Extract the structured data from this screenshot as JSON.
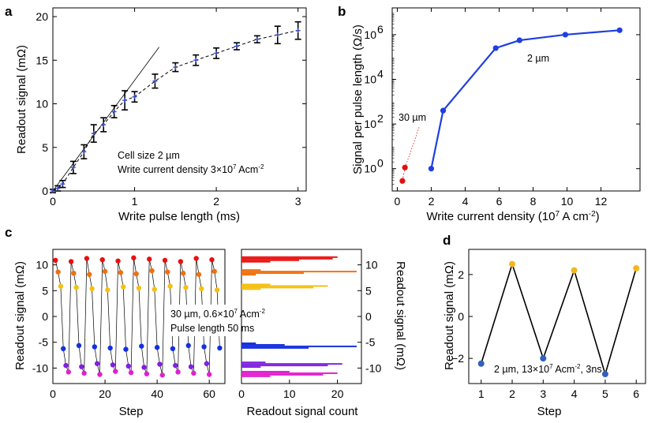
{
  "chart_data": [
    {
      "panel": "a",
      "type": "scatter",
      "xlabel": "Write pulse length (ms)",
      "ylabel": "Readout signal (mΩ)",
      "xlim": [
        0,
        3.1
      ],
      "ylim": [
        0,
        21
      ],
      "xticks": [
        "0",
        "1",
        "2",
        "3"
      ],
      "yticks": [
        "0",
        "5",
        "10",
        "15",
        "20"
      ],
      "points": [
        {
          "x": 0.0,
          "y": 0.0,
          "err": 0.2
        },
        {
          "x": 0.06,
          "y": 0.3,
          "err": 0.3
        },
        {
          "x": 0.12,
          "y": 0.8,
          "err": 0.4
        },
        {
          "x": 0.25,
          "y": 2.7,
          "err": 0.7
        },
        {
          "x": 0.38,
          "y": 4.5,
          "err": 0.8
        },
        {
          "x": 0.5,
          "y": 6.6,
          "err": 1.0
        },
        {
          "x": 0.62,
          "y": 7.6,
          "err": 0.8
        },
        {
          "x": 0.75,
          "y": 9.1,
          "err": 0.7
        },
        {
          "x": 0.88,
          "y": 10.4,
          "err": 1.1
        },
        {
          "x": 1.0,
          "y": 10.8,
          "err": 0.6
        },
        {
          "x": 1.25,
          "y": 12.6,
          "err": 0.8
        },
        {
          "x": 1.5,
          "y": 14.2,
          "err": 0.5
        },
        {
          "x": 1.75,
          "y": 15.0,
          "err": 0.6
        },
        {
          "x": 2.0,
          "y": 15.8,
          "err": 0.6
        },
        {
          "x": 2.25,
          "y": 16.6,
          "err": 0.4
        },
        {
          "x": 2.5,
          "y": 17.4,
          "err": 0.4
        },
        {
          "x": 2.75,
          "y": 17.9,
          "err": 1.0
        },
        {
          "x": 3.0,
          "y": 18.4,
          "err": 1.0
        }
      ],
      "fit_line": {
        "x": [
          0,
          1.3
        ],
        "y": [
          0,
          16.5
        ]
      },
      "annotation": [
        "Cell size 2 µm",
        "Write current density 3×10",
        "7",
        " Acm",
        "-2"
      ],
      "colors": {
        "errorbar": "#000000",
        "marker": "#3a4fd0",
        "fit": "#000000"
      }
    },
    {
      "panel": "b",
      "type": "line",
      "xlabel": "Write current density (10",
      "xlabel_sup": "7",
      "xlabel_end": " A cm",
      "xlabel_sup2": "-2",
      "xlabel_close": ")",
      "ylabel": "Signal per pulse length (Ω/s)",
      "xlim": [
        -0.3,
        14.3
      ],
      "ylog_range": [
        -1,
        7.2
      ],
      "xticks": [
        "0",
        "2",
        "4",
        "6",
        "8",
        "10",
        "12"
      ],
      "yticks_exp": [
        "0",
        "2",
        "4",
        "6"
      ],
      "series": [
        {
          "name": "2 µm",
          "color": "#1f3fe0",
          "x": [
            2.0,
            2.7,
            5.8,
            7.2,
            9.9,
            13.1
          ],
          "log10y": [
            0.0,
            2.6,
            5.4,
            5.75,
            6.0,
            6.2
          ]
        },
        {
          "name": "30 µm",
          "color": "#e01010",
          "x": [
            0.3,
            0.45
          ],
          "log10y": [
            -0.55,
            0.05
          ]
        }
      ],
      "labels": [
        "2 µm",
        "30 µm"
      ]
    },
    {
      "panel": "c",
      "type": "scatter",
      "xlabel": "Step",
      "ylabel": "Readout signal (mΩ)",
      "xlim": [
        0,
        66
      ],
      "ylim": [
        -13,
        13
      ],
      "xticks": [
        "0",
        "20",
        "40",
        "60"
      ],
      "yticks": [
        "10",
        "5",
        "0",
        "-5",
        "-10"
      ],
      "levels": [
        {
          "value": 11.0,
          "color": "#e81010"
        },
        {
          "value": 8.5,
          "color": "#f07010"
        },
        {
          "value": 5.5,
          "color": "#f5c010"
        },
        {
          "value": -6.0,
          "color": "#1530e0"
        },
        {
          "value": -9.5,
          "color": "#8020e0"
        },
        {
          "value": -11.0,
          "color": "#e020d0"
        }
      ],
      "annotation": [
        "30 µm, 0.6×10",
        "7",
        " Acm",
        "-2",
        "Pulse length 50 ms"
      ]
    },
    {
      "panel": "c-histogram",
      "type": "bar",
      "xlabel": "Readout signal count",
      "ylabel": "Readout signal (mΩ)",
      "xlim": [
        0,
        25
      ],
      "xticks": [
        "0",
        "10",
        "20"
      ],
      "yticks": [
        "10",
        "5",
        "0",
        "-5",
        "-10"
      ],
      "bars": [
        {
          "y": 11.5,
          "count": 20,
          "color": "#e81010"
        },
        {
          "y": 11.2,
          "count": 19,
          "color": "#e81010"
        },
        {
          "y": 10.9,
          "count": 12,
          "color": "#e81010"
        },
        {
          "y": 10.6,
          "count": 6,
          "color": "#e81010"
        },
        {
          "y": 9.0,
          "count": 4,
          "color": "#f07010"
        },
        {
          "y": 8.7,
          "count": 24,
          "color": "#f07010"
        },
        {
          "y": 8.4,
          "count": 13,
          "color": "#f07010"
        },
        {
          "y": 8.1,
          "count": 3,
          "color": "#f07010"
        },
        {
          "y": 6.2,
          "count": 6,
          "color": "#f5c010"
        },
        {
          "y": 5.9,
          "count": 18,
          "color": "#f5c010"
        },
        {
          "y": 5.6,
          "count": 15,
          "color": "#f5c010"
        },
        {
          "y": 5.3,
          "count": 4,
          "color": "#f5c010"
        },
        {
          "y": -5.2,
          "count": 3,
          "color": "#1530e0"
        },
        {
          "y": -5.5,
          "count": 9,
          "color": "#1530e0"
        },
        {
          "y": -5.8,
          "count": 24,
          "color": "#1530e0"
        },
        {
          "y": -6.1,
          "count": 14,
          "color": "#1530e0"
        },
        {
          "y": -8.9,
          "count": 5,
          "color": "#8020e0"
        },
        {
          "y": -9.2,
          "count": 21,
          "color": "#8020e0"
        },
        {
          "y": -9.5,
          "count": 18,
          "color": "#8020e0"
        },
        {
          "y": -9.8,
          "count": 4,
          "color": "#8020e0"
        },
        {
          "y": -10.7,
          "count": 10,
          "color": "#e020d0"
        },
        {
          "y": -11.0,
          "count": 20,
          "color": "#e020d0"
        },
        {
          "y": -11.3,
          "count": 17,
          "color": "#e020d0"
        },
        {
          "y": -11.6,
          "count": 6,
          "color": "#e020d0"
        }
      ]
    },
    {
      "panel": "d",
      "type": "line",
      "xlabel": "Step",
      "ylabel": "Readout signal (mΩ)",
      "xlim": [
        0.6,
        6.3
      ],
      "ylim": [
        -3.2,
        3.2
      ],
      "xticks": [
        "1",
        "2",
        "3",
        "4",
        "5",
        "6"
      ],
      "yticks": [
        "2",
        "0",
        "−2"
      ],
      "x": [
        1,
        2,
        3,
        4,
        5,
        6
      ],
      "y": [
        -2.25,
        2.5,
        -2.0,
        2.2,
        -2.75,
        2.3
      ],
      "point_colors": [
        "#3060c0",
        "#f0b820",
        "#3060c0",
        "#f0b820",
        "#3060c0",
        "#f0b820"
      ],
      "annotation": [
        "2 µm, 13×10",
        "7",
        " Acm",
        "-2",
        ", 3ns"
      ]
    }
  ],
  "panel_letters": [
    "a",
    "b",
    "c",
    "d"
  ]
}
